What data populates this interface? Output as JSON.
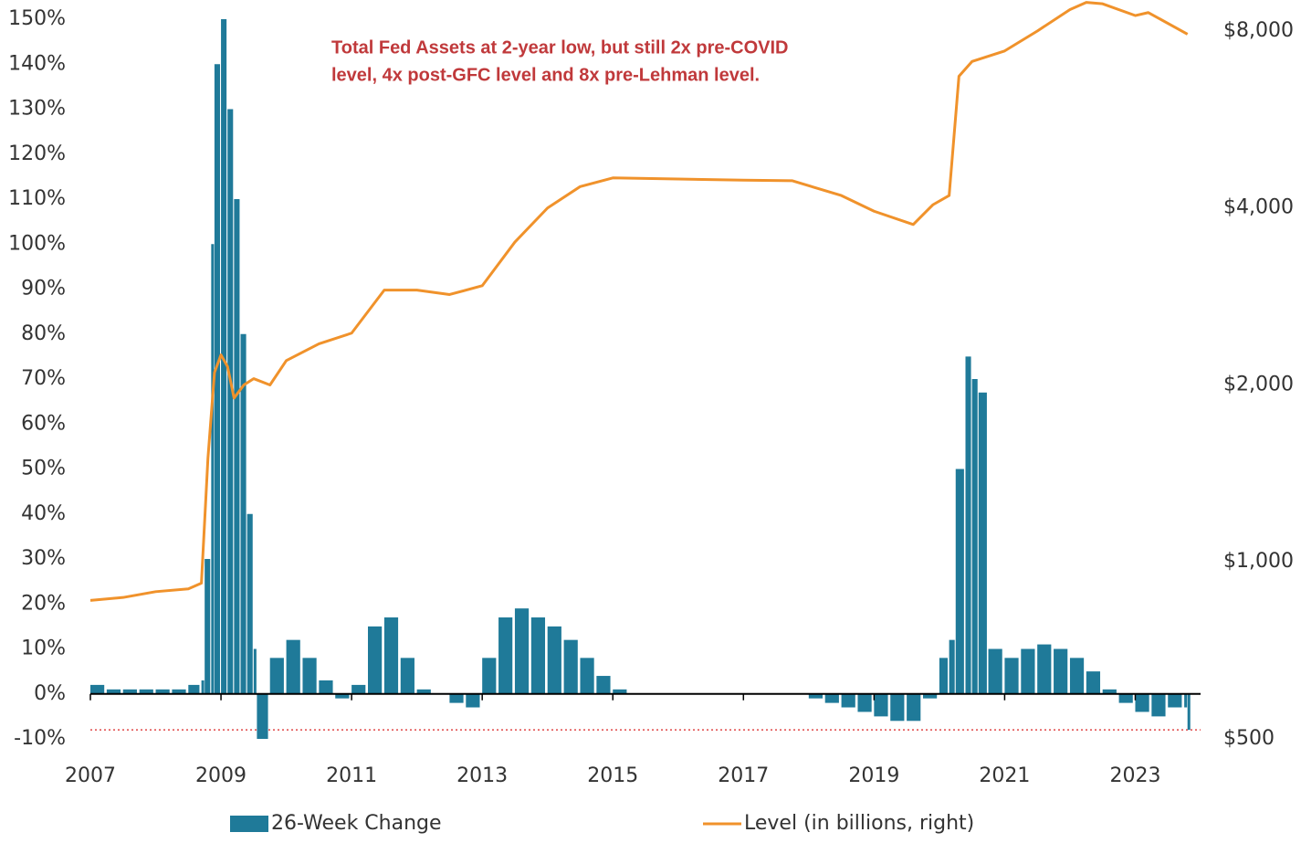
{
  "chart_data": {
    "type": "bar",
    "annotation": [
      "Total Fed Assets at 2-year low, but still 2x pre-COVID",
      "level, 4x post-GFC level and 8x pre-Lehman level."
    ],
    "annotation_color": "#c0393b",
    "xlim": [
      2007,
      2024
    ],
    "xticks": [
      2007,
      2009,
      2011,
      2013,
      2015,
      2017,
      2019,
      2021,
      2023
    ],
    "ylim": [
      -10,
      150
    ],
    "yticks": [
      {
        "value": -10,
        "label": "-10%"
      },
      {
        "value": 0,
        "label": "0%"
      },
      {
        "value": 10,
        "label": "10%"
      },
      {
        "value": 20,
        "label": "20%"
      },
      {
        "value": 30,
        "label": "30%"
      },
      {
        "value": 40,
        "label": "40%"
      },
      {
        "value": 50,
        "label": "50%"
      },
      {
        "value": 60,
        "label": "60%"
      },
      {
        "value": 70,
        "label": "70%"
      },
      {
        "value": 80,
        "label": "80%"
      },
      {
        "value": 90,
        "label": "90%"
      },
      {
        "value": 100,
        "label": "100%"
      },
      {
        "value": 110,
        "label": "110%"
      },
      {
        "value": 120,
        "label": "120%"
      },
      {
        "value": 130,
        "label": "130%"
      },
      {
        "value": 140,
        "label": "140%"
      },
      {
        "value": 150,
        "label": "150%"
      }
    ],
    "y2lim": [
      500,
      8380
    ],
    "y2_log": true,
    "y2ticks": [
      {
        "value": 500,
        "label": "$500"
      },
      {
        "value": 1000,
        "label": "$1,000"
      },
      {
        "value": 2000,
        "label": "$2,000"
      },
      {
        "value": 4000,
        "label": "$4,000"
      },
      {
        "value": 8000,
        "label": "$8,000"
      }
    ],
    "reference_line": {
      "value": -8,
      "color": "#e04848",
      "style": "dotted"
    },
    "series": [
      {
        "name": "26-Week Change",
        "type": "bar",
        "color": "#1f7a99",
        "x": [
          2007.0,
          2007.25,
          2007.5,
          2007.75,
          2008.0,
          2008.25,
          2008.5,
          2008.7,
          2008.75,
          2008.85,
          2008.9,
          2009.0,
          2009.1,
          2009.2,
          2009.3,
          2009.4,
          2009.5,
          2009.55,
          2009.75,
          2010.0,
          2010.25,
          2010.5,
          2010.75,
          2011.0,
          2011.25,
          2011.5,
          2011.75,
          2012.0,
          2012.25,
          2012.5,
          2012.75,
          2013.0,
          2013.25,
          2013.5,
          2013.75,
          2014.0,
          2014.25,
          2014.5,
          2014.75,
          2015.0,
          2015.25,
          2015.5,
          2016.0,
          2016.5,
          2017.0,
          2017.5,
          2018.0,
          2018.25,
          2018.5,
          2018.75,
          2019.0,
          2019.25,
          2019.5,
          2019.75,
          2020.0,
          2020.15,
          2020.25,
          2020.4,
          2020.5,
          2020.6,
          2020.75,
          2021.0,
          2021.25,
          2021.5,
          2021.75,
          2022.0,
          2022.25,
          2022.5,
          2022.75,
          2023.0,
          2023.25,
          2023.5,
          2023.75,
          2023.8
        ],
        "values": [
          2,
          1,
          1,
          1,
          1,
          1,
          2,
          3,
          30,
          100,
          140,
          150,
          130,
          110,
          80,
          40,
          10,
          -10,
          8,
          12,
          8,
          3,
          -1,
          2,
          15,
          17,
          8,
          1,
          0,
          -2,
          -3,
          8,
          17,
          19,
          17,
          15,
          12,
          8,
          4,
          1,
          0,
          0,
          0,
          0,
          0,
          0,
          -1,
          -2,
          -3,
          -4,
          -5,
          -6,
          -6,
          -1,
          8,
          12,
          50,
          75,
          70,
          67,
          10,
          8,
          10,
          11,
          10,
          8,
          5,
          1,
          -2,
          -4,
          -5,
          -3,
          -3,
          -8
        ]
      },
      {
        "name": "Level (in billions, right)",
        "type": "line",
        "axis": "y2",
        "color": "#f0922b",
        "x": [
          2007.0,
          2007.5,
          2008.0,
          2008.5,
          2008.7,
          2008.8,
          2008.9,
          2009.0,
          2009.1,
          2009.2,
          2009.35,
          2009.5,
          2009.75,
          2010.0,
          2010.5,
          2011.0,
          2011.5,
          2012.0,
          2012.5,
          2013.0,
          2013.5,
          2014.0,
          2014.5,
          2015.0,
          2016.0,
          2017.0,
          2017.75,
          2018.5,
          2019.0,
          2019.6,
          2019.9,
          2020.15,
          2020.3,
          2020.5,
          2021.0,
          2021.5,
          2022.0,
          2022.25,
          2022.5,
          2023.0,
          2023.2,
          2023.8
        ],
        "values": [
          860,
          870,
          890,
          900,
          920,
          1500,
          2100,
          2250,
          2150,
          1900,
          2000,
          2050,
          2000,
          2200,
          2350,
          2450,
          2900,
          2900,
          2850,
          2950,
          3500,
          4000,
          4350,
          4500,
          4480,
          4460,
          4450,
          4200,
          3950,
          3750,
          4050,
          4200,
          6700,
          7100,
          7400,
          8000,
          8700,
          8950,
          8900,
          8500,
          8600,
          7900
        ]
      }
    ]
  }
}
